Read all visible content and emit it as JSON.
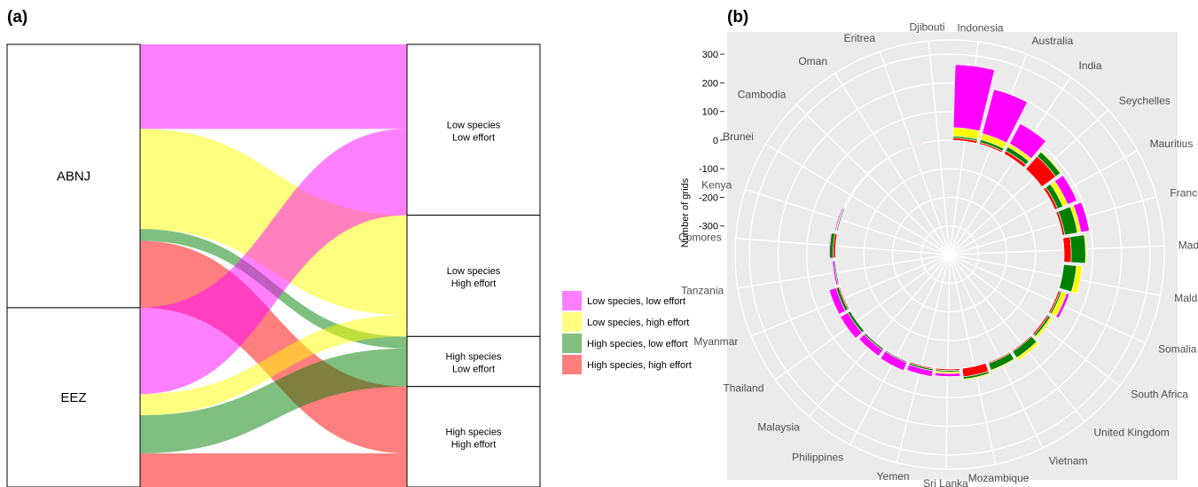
{
  "colors": {
    "low_species_low_effort": "#ff00ff",
    "low_species_high_effort": "#ffff00",
    "high_species_low_effort": "#008000",
    "high_species_high_effort": "#ff0000",
    "panel_bg": "#ebebeb",
    "grid": "#ffffff"
  },
  "chart_data": [
    {
      "panel_label": "(a)",
      "type": "alluvial",
      "left_nodes": [
        {
          "label": "ABNJ",
          "value": 0.595
        },
        {
          "label": "EEZ",
          "value": 0.405
        }
      ],
      "right_nodes": [
        {
          "label_line1": "Low species",
          "label_line2": "Low effort",
          "value": 0.386
        },
        {
          "label_line1": "Low species",
          "label_line2": "High effort",
          "value": 0.274
        },
        {
          "label_line1": "High species",
          "label_line2": "Low effort",
          "value": 0.113
        },
        {
          "label_line1": "High species",
          "label_line2": "High effort",
          "value": 0.227
        }
      ],
      "flows": [
        {
          "from": 0,
          "to": 0,
          "category": "low_species_low_effort",
          "value": 0.191
        },
        {
          "from": 0,
          "to": 1,
          "category": "low_species_high_effort",
          "value": 0.226
        },
        {
          "from": 0,
          "to": 2,
          "category": "high_species_low_effort",
          "value": 0.027
        },
        {
          "from": 0,
          "to": 3,
          "category": "high_species_high_effort",
          "value": 0.151
        },
        {
          "from": 1,
          "to": 0,
          "category": "low_species_low_effort",
          "value": 0.195
        },
        {
          "from": 1,
          "to": 1,
          "category": "low_species_high_effort",
          "value": 0.048
        },
        {
          "from": 1,
          "to": 2,
          "category": "high_species_low_effort",
          "value": 0.086
        },
        {
          "from": 1,
          "to": 3,
          "category": "high_species_high_effort",
          "value": 0.076
        }
      ],
      "legend": {
        "placement": "right",
        "entries": [
          {
            "label": "Low species, low effort",
            "category": "low_species_low_effort"
          },
          {
            "label": "Low species, high effort",
            "category": "low_species_high_effort"
          },
          {
            "label": "High species, low effort",
            "category": "high_species_low_effort"
          },
          {
            "label": "High species, high effort",
            "category": "high_species_high_effort"
          }
        ]
      }
    },
    {
      "panel_label": "(b)",
      "type": "bar",
      "coordinate_system": "polar",
      "ylabel": "Number of grids",
      "ylim": [
        -400,
        350
      ],
      "yticks": [
        -300,
        -200,
        -100,
        0,
        100,
        200,
        300
      ],
      "series_order": [
        "low_species_low_effort",
        "low_species_high_effort",
        "high_species_low_effort",
        "high_species_high_effort"
      ],
      "categories": [
        "Indonesia",
        "Australia",
        "India",
        "Seychelles",
        "Mauritius",
        "France",
        "Madagascar",
        "Maldives",
        "Somalia",
        "South Africa",
        "United Kingdom",
        "Vietnam",
        "Mozambique",
        "Sri Lanka",
        "Yemen",
        "Philippines",
        "Malaysia",
        "Thailand",
        "Myanmar",
        "Tanzania",
        "Comores",
        "Kenya",
        "Brunei",
        "Cambodia",
        "Oman",
        "Eritrea",
        "Djibouti"
      ],
      "series": [
        {
          "category": "high_species_high_effort",
          "values": [
            8,
            6,
            12,
            60,
            10,
            8,
            25,
            0,
            6,
            6,
            4,
            4,
            30,
            5,
            4,
            2,
            2,
            0,
            4,
            0,
            8,
            0,
            2,
            0,
            0,
            0,
            0
          ]
        },
        {
          "category": "high_species_low_effort",
          "values": [
            6,
            10,
            16,
            20,
            20,
            45,
            50,
            45,
            6,
            8,
            26,
            25,
            8,
            5,
            6,
            4,
            6,
            10,
            10,
            4,
            12,
            4,
            2,
            2,
            0,
            0,
            0
          ]
        },
        {
          "category": "low_species_high_effort",
          "values": [
            30,
            22,
            12,
            4,
            18,
            12,
            4,
            20,
            18,
            8,
            10,
            4,
            4,
            6,
            0,
            0,
            0,
            0,
            0,
            0,
            0,
            2,
            0,
            0,
            0,
            0,
            0
          ]
        },
        {
          "category": "low_species_low_effort",
          "values": [
            220,
            160,
            80,
            0,
            35,
            30,
            0,
            0,
            10,
            0,
            0,
            0,
            0,
            10,
            20,
            30,
            25,
            30,
            25,
            6,
            3,
            4,
            2,
            2,
            2,
            2,
            0
          ]
        }
      ]
    }
  ]
}
